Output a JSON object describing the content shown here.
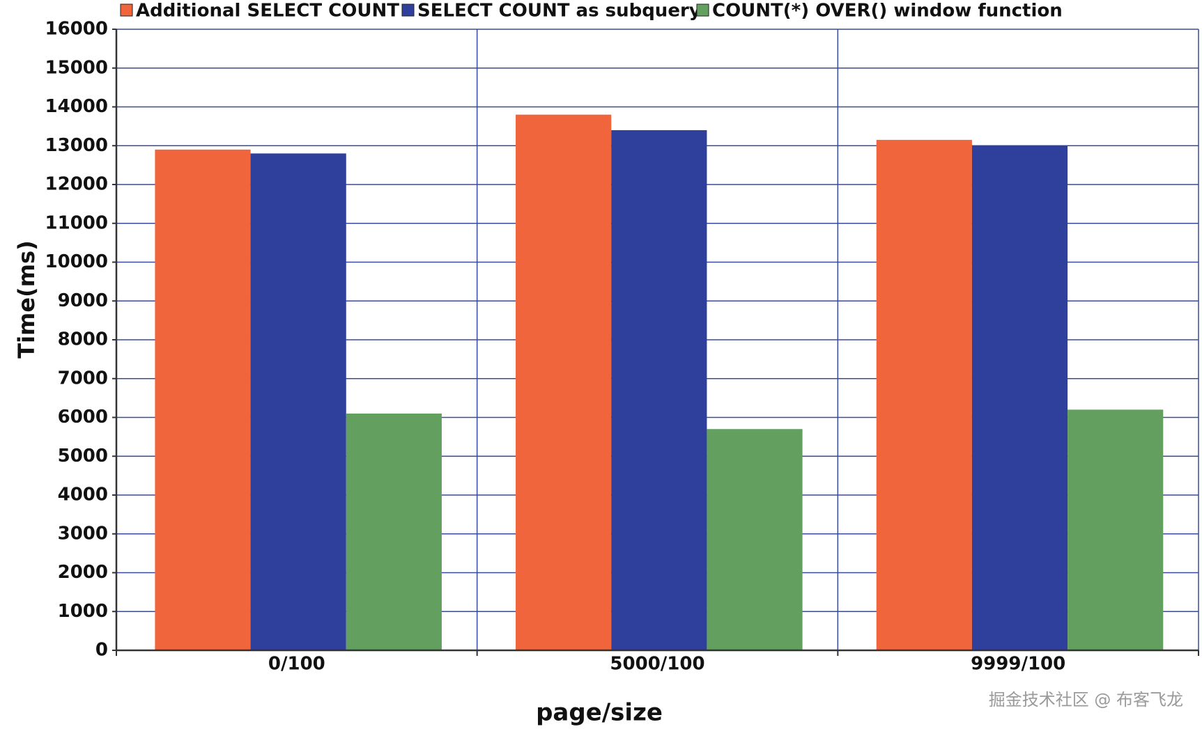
{
  "chart_data": {
    "type": "bar",
    "categories": [
      "0/100",
      "5000/100",
      "9999/100"
    ],
    "series": [
      {
        "name": "Additional SELECT COUNT",
        "color": "#f0653c",
        "values": [
          12900,
          13800,
          13150
        ]
      },
      {
        "name": "SELECT COUNT as subquery",
        "color": "#2f3f9c",
        "values": [
          12800,
          13400,
          13000
        ]
      },
      {
        "name": "COUNT(*) OVER() window function",
        "color": "#63a060",
        "values": [
          6100,
          5700,
          6200
        ]
      }
    ],
    "ylabel": "Time(ms)",
    "xlabel": "page/size",
    "ylim": [
      0,
      16000
    ],
    "yticks": [
      0,
      1000,
      2000,
      3000,
      4000,
      5000,
      6000,
      7000,
      8000,
      9000,
      10000,
      11000,
      12000,
      13000,
      14000,
      15000,
      16000
    ],
    "grid": true,
    "legend": "top"
  },
  "watermark": "掘金技术社区 @ 布客飞龙"
}
